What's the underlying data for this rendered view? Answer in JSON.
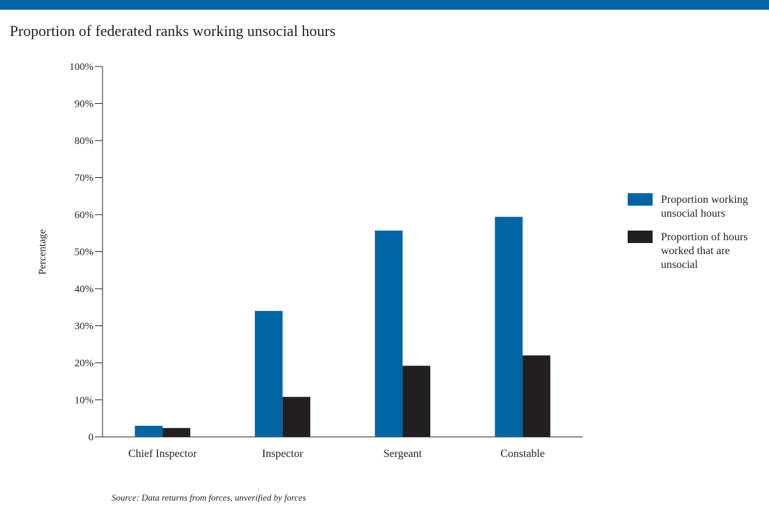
{
  "header": {
    "bar_color": "#0065a4"
  },
  "chart_data": {
    "type": "bar",
    "title": "Proportion of federated ranks working unsocial hours",
    "xlabel": "",
    "ylabel": "Percentage",
    "categories": [
      "Chief Inspector",
      "Inspector",
      "Sergeant",
      "Constable"
    ],
    "series": [
      {
        "name": "Proportion working unsocial hours",
        "color": "#0065a4",
        "values": [
          3,
          34,
          55.7,
          59.4
        ]
      },
      {
        "name": "Proportion of hours worked that are unsocial",
        "color": "#231f20",
        "values": [
          2.4,
          10.8,
          19.2,
          22
        ]
      }
    ],
    "ylim": [
      0,
      100
    ],
    "yticks": [
      {
        "value": 0,
        "label": "0"
      },
      {
        "value": 10,
        "label": "10%"
      },
      {
        "value": 20,
        "label": "20%"
      },
      {
        "value": 30,
        "label": "30%"
      },
      {
        "value": 40,
        "label": "40%"
      },
      {
        "value": 50,
        "label": "50%"
      },
      {
        "value": 60,
        "label": "60%"
      },
      {
        "value": 70,
        "label": "70%"
      },
      {
        "value": 80,
        "label": "80%"
      },
      {
        "value": 90,
        "label": "90%"
      },
      {
        "value": 100,
        "label": "100%"
      }
    ],
    "grid": false,
    "legend_position": "right"
  },
  "source_note": "Source: Data returns from forces, unverified by forces"
}
